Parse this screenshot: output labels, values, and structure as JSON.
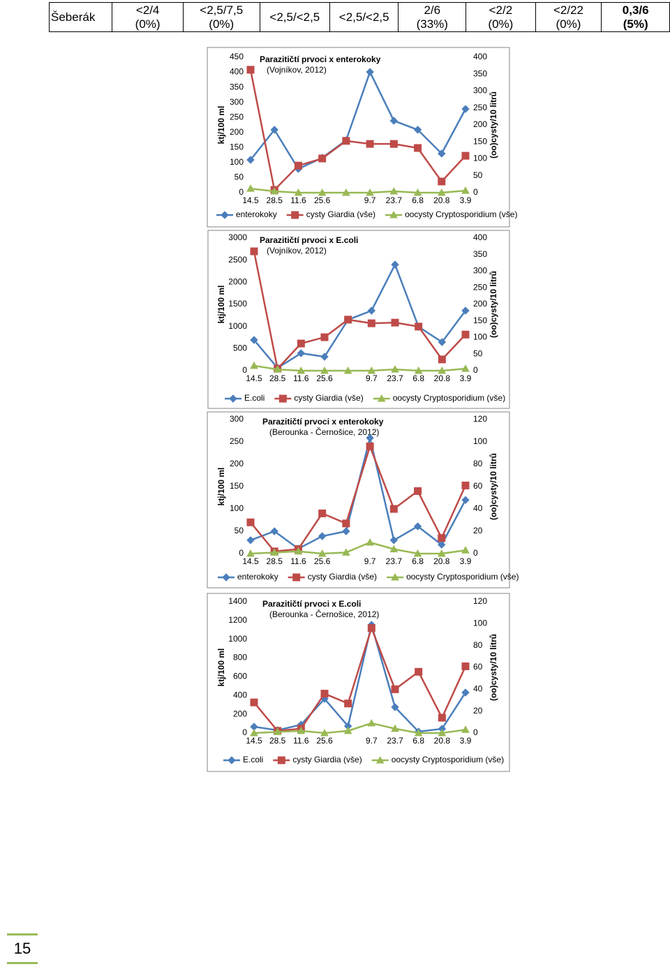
{
  "table": {
    "rows": [
      [
        [
          "Šeberák"
        ],
        [
          "<2/4",
          "(0%)"
        ],
        [
          "<2,5/7,5",
          "(0%)"
        ],
        [
          "<2,5/<2,5"
        ],
        [
          "<2,5/<2,5"
        ],
        [
          "2/6",
          "(33%)"
        ],
        [
          "<2/2",
          "(0%)"
        ],
        [
          "<2/22",
          "(0%)"
        ],
        [
          "0,3/6",
          "(5%)"
        ]
      ]
    ]
  },
  "chart_data": [
    {
      "type": "line",
      "title": "Parazitičtí prvoci x enterokoky",
      "subtitle": "(Vojníkov, 2012)",
      "ylabel": "ktj/100 ml",
      "y2label": "(oo)cysty/10 litrů",
      "categories": [
        "14.5",
        "28.5",
        "11.6",
        "25.6",
        null,
        "9.7",
        "23.7",
        "6.8",
        "20.8",
        "3.9"
      ],
      "ylim": [
        0,
        450
      ],
      "yticks": [
        0,
        50,
        100,
        150,
        200,
        250,
        300,
        350,
        400,
        450
      ],
      "y2lim": [
        0,
        400
      ],
      "y2ticks": [
        0,
        50,
        100,
        150,
        200,
        250,
        300,
        350,
        400
      ],
      "series": [
        {
          "name": "enterokoky",
          "color": "#4a7ebb",
          "values": [
            109,
            209,
            79,
            116,
            174,
            401,
            239,
            209,
            130,
            278
          ]
        },
        {
          "name": "cysty Giardia (vše)",
          "color": "#be4b48",
          "axis": "y2",
          "values": [
            363,
            8,
            80,
            101,
            153,
            144,
            144,
            132,
            33,
            109
          ]
        },
        {
          "name": "oocysty Cryptosporidium (vše)",
          "color": "#98b954",
          "axis": "y2",
          "values": [
            12,
            4,
            0,
            0,
            0,
            0,
            4,
            0,
            0,
            6
          ]
        }
      ]
    },
    {
      "type": "line",
      "title": "Parazitičtí prvoci x E.coli",
      "subtitle": "(Vojníkov, 2012)",
      "ylabel": "ktj/100 ml",
      "y2label": "(oo)cysty/10 litrů",
      "categories": [
        "14.5",
        "28.5",
        "11.6",
        "25.6",
        null,
        "9.7",
        "23.7",
        "6.8",
        "20.8",
        "3.9"
      ],
      "ylim": [
        0,
        3000
      ],
      "yticks": [
        0,
        500,
        1000,
        1500,
        2000,
        2500,
        3000
      ],
      "y2lim": [
        0,
        400
      ],
      "y2ticks": [
        0,
        50,
        100,
        150,
        200,
        250,
        300,
        350,
        400
      ],
      "series": [
        {
          "name": "E.coli",
          "color": "#4a7ebb",
          "values": [
            695,
            63,
            395,
            316,
            1153,
            1358,
            2400,
            995,
            647,
            1358
          ]
        },
        {
          "name": "cysty Giardia (vše)",
          "color": "#be4b48",
          "axis": "y2",
          "values": [
            360,
            6,
            82,
            101,
            154,
            143,
            145,
            133,
            34,
            109
          ]
        },
        {
          "name": "oocysty Cryptosporidium (vše)",
          "color": "#98b954",
          "axis": "y2",
          "values": [
            15,
            4,
            0,
            0,
            0,
            0,
            4,
            0,
            0,
            6
          ]
        }
      ]
    },
    {
      "type": "line",
      "title": "Parazitičtí prvoci x enterokoky",
      "subtitle": "(Berounka - Černošice, 2012)",
      "ylabel": "ktj/100 ml",
      "y2label": "(oo)cysty/10 litrů",
      "categories": [
        "14.5",
        "28.5",
        "11.6",
        "25.6",
        null,
        "9.7",
        "23.7",
        "6.8",
        "20.8",
        "3.9"
      ],
      "ylim": [
        0,
        300
      ],
      "yticks": [
        0,
        50,
        100,
        150,
        200,
        250,
        300
      ],
      "y2lim": [
        0,
        120
      ],
      "y2ticks": [
        0,
        20,
        40,
        60,
        80,
        100,
        120
      ],
      "series": [
        {
          "name": "enterokoky",
          "color": "#4a7ebb",
          "values": [
            30,
            50,
            11,
            39,
            50,
            259,
            30,
            61,
            20,
            120
          ]
        },
        {
          "name": "cysty Giardia (vše)",
          "color": "#be4b48",
          "axis": "y2",
          "values": [
            28,
            2,
            4,
            36,
            27,
            96,
            40,
            56,
            14,
            61
          ]
        },
        {
          "name": "oocysty Cryptosporidium (vše)",
          "color": "#98b954",
          "axis": "y2",
          "values": [
            0,
            1,
            2,
            0,
            1,
            10,
            4,
            0,
            0,
            3
          ]
        }
      ]
    },
    {
      "type": "line",
      "title": "Parazitičtí prvoci x E.coli",
      "subtitle": "(Berounka - Černošice, 2012)",
      "ylabel": "ktj/100 ml",
      "y2label": "(oo)cysty/10 litrů",
      "categories": [
        "14.5",
        "28.5",
        "11.6",
        "25.6",
        null,
        "9.7",
        "23.7",
        "6.8",
        "20.8",
        "3.9"
      ],
      "ylim": [
        0,
        1400
      ],
      "yticks": [
        0,
        200,
        400,
        600,
        800,
        1000,
        1200,
        1400
      ],
      "y2lim": [
        0,
        120
      ],
      "y2ticks": [
        0,
        20,
        40,
        60,
        80,
        100,
        120
      ],
      "series": [
        {
          "name": "E.coli",
          "color": "#4a7ebb",
          "values": [
            67,
            30,
            89,
            365,
            74,
            1154,
            276,
            15,
            45,
            432
          ]
        },
        {
          "name": "cysty Giardia (vše)",
          "color": "#be4b48",
          "axis": "y2",
          "values": [
            28,
            2,
            4,
            36,
            27,
            96,
            40,
            56,
            14,
            61
          ]
        },
        {
          "name": "oocysty Cryptosporidium (vše)",
          "color": "#98b954",
          "axis": "y2",
          "values": [
            0,
            1,
            2,
            0,
            2,
            9,
            4,
            0,
            0,
            3
          ]
        }
      ]
    }
  ],
  "page_number": "15"
}
